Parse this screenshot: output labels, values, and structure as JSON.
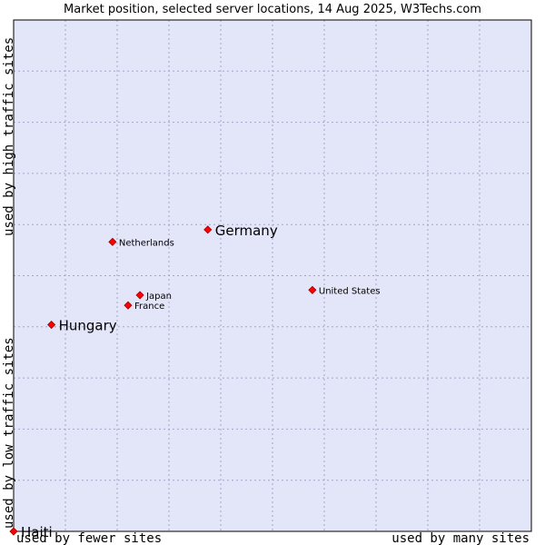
{
  "chart_data": {
    "type": "scatter",
    "title": "Market position, selected server locations, 14 Aug 2025, W3Techs.com",
    "xlabel_left": "used by fewer sites",
    "xlabel_right": "used by many sites",
    "ylabel_bottom": "used by low traffic sites",
    "ylabel_top": "used by high traffic sites",
    "xlim": [
      0,
      100
    ],
    "ylim": [
      0,
      100
    ],
    "grid": true,
    "colors": {
      "plot_bg": "#e3e5f9",
      "grid": "#a3a6c9",
      "border": "#000000",
      "marker": "#ff0000",
      "marker_edge": "#a00000"
    },
    "points": [
      {
        "name": "Germany",
        "x": 37.5,
        "y": 59.0,
        "emphasis": true
      },
      {
        "name": "Netherlands",
        "x": 19.1,
        "y": 56.6,
        "emphasis": false
      },
      {
        "name": "United States",
        "x": 57.7,
        "y": 47.2,
        "emphasis": false
      },
      {
        "name": "Japan",
        "x": 24.4,
        "y": 46.2,
        "emphasis": false
      },
      {
        "name": "France",
        "x": 22.1,
        "y": 44.2,
        "emphasis": false
      },
      {
        "name": "Hungary",
        "x": 7.3,
        "y": 40.4,
        "emphasis": true
      },
      {
        "name": "Haiti",
        "x": 0.0,
        "y": 0.0,
        "emphasis": true
      }
    ]
  }
}
